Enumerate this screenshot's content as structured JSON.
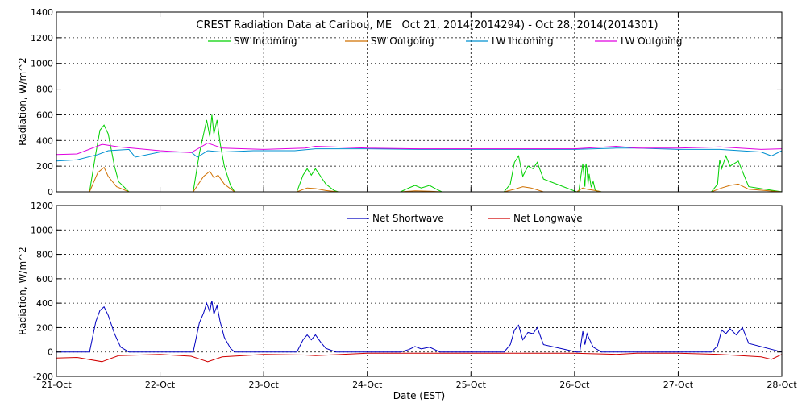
{
  "chart_data": [
    {
      "type": "line",
      "title": "CREST Radiation Data at Caribou, ME   Oct 21, 2014(2014294) - Oct 28, 2014(2014301)",
      "ylabel": "Radiation, W/m^2",
      "xlabel": "",
      "ylim": [
        0,
        1400
      ],
      "yticks": [
        0,
        200,
        400,
        600,
        800,
        1000,
        1200,
        1400
      ],
      "xlim": [
        "2014-10-21",
        "2014-10-28"
      ],
      "grid": true,
      "legend_position": "top-center",
      "series": [
        {
          "name": "SW Incoming",
          "color": "#00d000",
          "x": [
            0,
            0.32,
            0.38,
            0.42,
            0.46,
            0.5,
            0.56,
            0.6,
            0.7,
            1.32,
            1.38,
            1.42,
            1.45,
            1.48,
            1.5,
            1.52,
            1.55,
            1.58,
            1.62,
            1.68,
            1.72,
            2.32,
            2.38,
            2.42,
            2.46,
            2.5,
            2.55,
            2.6,
            2.68,
            2.72,
            3.32,
            3.4,
            3.46,
            3.52,
            3.6,
            3.68,
            3.72,
            4.32,
            4.38,
            4.42,
            4.46,
            4.5,
            4.55,
            4.6,
            4.64,
            4.7,
            5.02,
            5.04,
            5.06,
            5.08,
            5.1,
            5.11,
            5.12,
            5.13,
            5.14,
            5.16,
            5.18,
            5.2,
            5.26,
            6.32,
            6.38,
            6.4,
            6.42,
            6.46,
            6.5,
            6.58,
            6.64,
            6.68,
            7
          ],
          "y": [
            0,
            0,
            300,
            480,
            520,
            450,
            200,
            80,
            0,
            0,
            300,
            450,
            560,
            430,
            600,
            450,
            560,
            380,
            200,
            50,
            0,
            0,
            130,
            180,
            130,
            180,
            120,
            60,
            10,
            0,
            0,
            30,
            50,
            30,
            50,
            15,
            0,
            0,
            60,
            230,
            280,
            120,
            200,
            180,
            230,
            100,
            0,
            0,
            120,
            220,
            40,
            220,
            180,
            60,
            140,
            40,
            80,
            10,
            0,
            0,
            60,
            250,
            180,
            280,
            200,
            240,
            120,
            40,
            0
          ]
        },
        {
          "name": "SW Outgoing",
          "color": "#d07000",
          "x": [
            0,
            0.32,
            0.4,
            0.46,
            0.5,
            0.58,
            0.7,
            1.32,
            1.42,
            1.48,
            1.52,
            1.56,
            1.62,
            1.72,
            2.32,
            2.42,
            2.5,
            2.6,
            2.72,
            3.32,
            3.46,
            3.6,
            3.72,
            4.32,
            4.42,
            4.5,
            4.58,
            4.7,
            5.02,
            5.08,
            5.12,
            5.2,
            5.26,
            6.32,
            6.42,
            6.5,
            6.58,
            6.68,
            7
          ],
          "y": [
            0,
            0,
            150,
            190,
            120,
            40,
            0,
            0,
            120,
            160,
            110,
            130,
            60,
            0,
            0,
            30,
            25,
            10,
            0,
            0,
            8,
            5,
            0,
            0,
            20,
            40,
            30,
            0,
            0,
            30,
            20,
            10,
            0,
            0,
            30,
            50,
            60,
            20,
            0
          ]
        },
        {
          "name": "LW Incoming",
          "color": "#0090d0",
          "x": [
            0,
            0.2,
            0.4,
            0.5,
            0.7,
            0.76,
            1.0,
            1.3,
            1.36,
            1.46,
            1.6,
            1.9,
            2.3,
            2.5,
            3.0,
            3.5,
            4.0,
            4.5,
            5.0,
            5.4,
            5.6,
            6.0,
            6.4,
            6.8,
            6.9,
            7
          ],
          "y": [
            240,
            250,
            290,
            320,
            330,
            270,
            310,
            310,
            270,
            320,
            310,
            320,
            320,
            335,
            335,
            330,
            330,
            330,
            330,
            340,
            340,
            330,
            330,
            310,
            280,
            320
          ]
        },
        {
          "name": "LW Outgoing",
          "color": "#e000e0",
          "x": [
            0,
            0.2,
            0.44,
            0.6,
            1.0,
            1.3,
            1.46,
            1.6,
            2.0,
            2.4,
            2.5,
            3.0,
            3.5,
            4.0,
            4.5,
            5.0,
            5.4,
            5.6,
            6.0,
            6.4,
            6.8,
            7
          ],
          "y": [
            290,
            295,
            370,
            350,
            320,
            305,
            380,
            340,
            330,
            340,
            355,
            340,
            335,
            335,
            335,
            335,
            355,
            340,
            340,
            350,
            330,
            335
          ]
        }
      ]
    },
    {
      "type": "line",
      "title": "",
      "ylabel": "Radiation, W/m^2",
      "xlabel": "Date (EST)",
      "ylim": [
        -200,
        1200
      ],
      "yticks": [
        -200,
        0,
        200,
        400,
        600,
        800,
        1000,
        1200
      ],
      "xlim": [
        "2014-10-21",
        "2014-10-28"
      ],
      "xticks": [
        "21-Oct",
        "22-Oct",
        "23-Oct",
        "24-Oct",
        "25-Oct",
        "26-Oct",
        "27-Oct",
        "28-Oct"
      ],
      "grid": true,
      "legend_position": "top-center",
      "series": [
        {
          "name": "Net Shortwave",
          "color": "#0000c0",
          "x": [
            0,
            0.32,
            0.38,
            0.42,
            0.46,
            0.5,
            0.56,
            0.62,
            0.7,
            1.32,
            1.38,
            1.42,
            1.45,
            1.48,
            1.5,
            1.52,
            1.55,
            1.58,
            1.62,
            1.68,
            1.72,
            2.32,
            2.38,
            2.42,
            2.46,
            2.5,
            2.55,
            2.6,
            2.7,
            3.32,
            3.4,
            3.46,
            3.52,
            3.6,
            3.7,
            4.32,
            4.38,
            4.42,
            4.46,
            4.5,
            4.55,
            4.6,
            4.64,
            4.7,
            5.02,
            5.05,
            5.08,
            5.1,
            5.12,
            5.14,
            5.18,
            5.26,
            6.32,
            6.38,
            6.42,
            6.46,
            6.5,
            6.56,
            6.62,
            6.68,
            7
          ],
          "y": [
            0,
            0,
            250,
            340,
            370,
            300,
            150,
            40,
            0,
            0,
            240,
            320,
            400,
            330,
            420,
            310,
            380,
            250,
            120,
            30,
            0,
            0,
            100,
            140,
            100,
            140,
            80,
            30,
            0,
            0,
            20,
            45,
            25,
            40,
            0,
            0,
            60,
            180,
            220,
            100,
            160,
            150,
            200,
            60,
            0,
            0,
            170,
            60,
            150,
            110,
            40,
            0,
            0,
            50,
            180,
            150,
            190,
            140,
            200,
            70,
            0
          ]
        },
        {
          "name": "Net Longwave",
          "color": "#d00000",
          "x": [
            0,
            0.2,
            0.44,
            0.6,
            1.0,
            1.3,
            1.46,
            1.6,
            2.0,
            2.4,
            2.5,
            3.0,
            3.5,
            4.0,
            4.5,
            5.0,
            5.4,
            5.6,
            6.0,
            6.4,
            6.8,
            6.9,
            7
          ],
          "y": [
            -50,
            -45,
            -80,
            -30,
            -20,
            -35,
            -80,
            -40,
            -20,
            -25,
            -30,
            -10,
            -10,
            -10,
            -10,
            -10,
            -20,
            -10,
            -10,
            -20,
            -40,
            -60,
            -20
          ]
        }
      ]
    }
  ]
}
